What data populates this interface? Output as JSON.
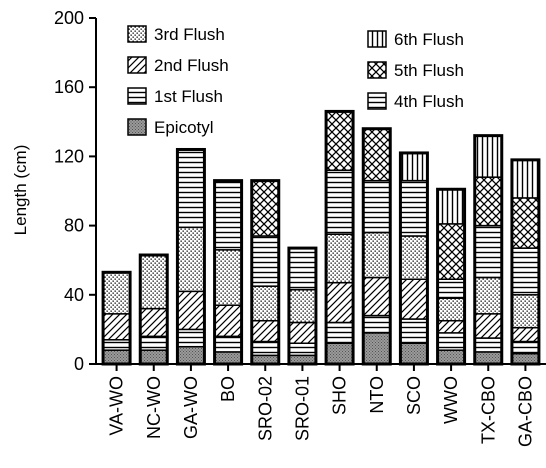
{
  "chart_data": {
    "type": "bar",
    "stacked": true,
    "ylabel": "Length (cm)",
    "xlabel": "",
    "ylim": [
      0,
      200
    ],
    "yticks": [
      0,
      40,
      80,
      120,
      160,
      200
    ],
    "grid": false,
    "legend_position": "top-left",
    "categories": [
      "VA-WO",
      "NC-WO",
      "GA-WO",
      "BO",
      "SRO-02",
      "SRO-01",
      "SHO",
      "NTO",
      "SCO",
      "WWO",
      "TX-CBO",
      "GA-CBO"
    ],
    "series": [
      {
        "name": "Epicotyl",
        "values": [
          8,
          8,
          10,
          7,
          5,
          5,
          12,
          18,
          12,
          8,
          7,
          6
        ],
        "pattern": "shaded"
      },
      {
        "name": "1st Flush",
        "values": [
          6,
          8,
          10,
          9,
          8,
          7,
          12,
          10,
          14,
          10,
          8,
          7
        ],
        "pattern": "hlines"
      },
      {
        "name": "2nd Flush",
        "values": [
          15,
          16,
          22,
          18,
          12,
          12,
          23,
          22,
          23,
          7,
          14,
          8
        ],
        "pattern": "diagonal"
      },
      {
        "name": "3rd Flush",
        "values": [
          24,
          31,
          37,
          32,
          20,
          19,
          28,
          26,
          25,
          13,
          21,
          19
        ],
        "pattern": "dots"
      },
      {
        "name": "4th Flush",
        "values": [
          0,
          0,
          45,
          40,
          29,
          24,
          37,
          30,
          32,
          11,
          30,
          27
        ],
        "pattern": "hlines"
      },
      {
        "name": "5th Flush",
        "values": [
          0,
          0,
          0,
          0,
          32,
          0,
          34,
          30,
          0,
          32,
          28,
          29
        ],
        "pattern": "crosshatch"
      },
      {
        "name": "6th Flush",
        "values": [
          0,
          0,
          0,
          0,
          0,
          0,
          0,
          0,
          16,
          20,
          24,
          22
        ],
        "pattern": "vlines"
      }
    ],
    "legend": [
      {
        "label": "3rd Flush",
        "pattern": "dots"
      },
      {
        "label": "2nd Flush",
        "pattern": "diagonal"
      },
      {
        "label": "1st Flush",
        "pattern": "hlines"
      },
      {
        "label": "Epicotyl",
        "pattern": "shaded"
      },
      {
        "label": "6th Flush",
        "pattern": "vlines"
      },
      {
        "label": "5th Flush",
        "pattern": "crosshatch"
      },
      {
        "label": "4th Flush",
        "pattern": "hlines"
      }
    ]
  }
}
